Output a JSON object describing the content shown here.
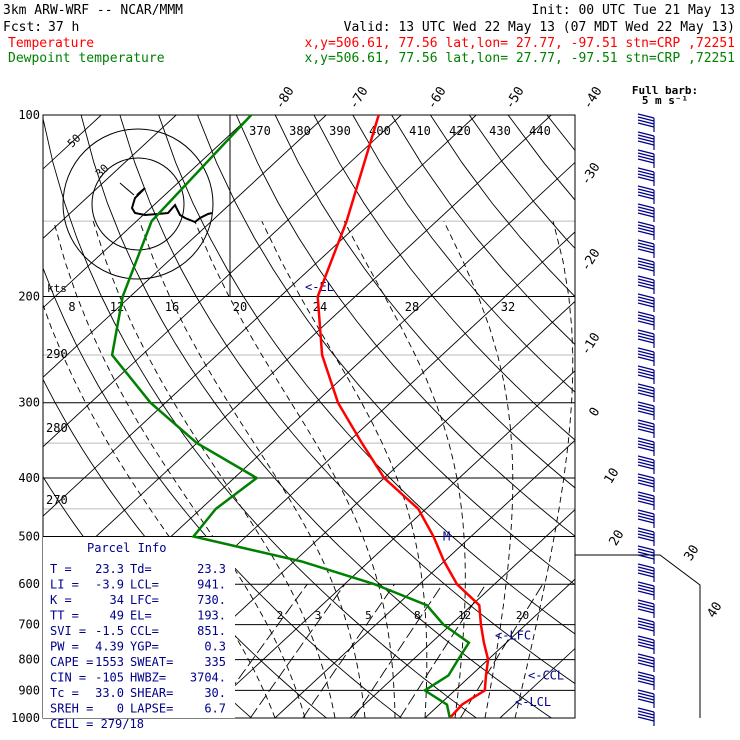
{
  "header": {
    "model": "3km ARW-WRF -- NCAR/MMM",
    "init": "Init: 00 UTC Tue 21 May 13",
    "fcst_label": "Fcst:",
    "fcst_value": "37 h",
    "valid": "Valid: 13 UTC Wed 22 May 13 (07 MDT Wed 22 May 13)",
    "temp_label": "Temperature",
    "dew_label": "Dewpoint temperature",
    "temp_info": "x,y=506.61, 77.56   lat,lon= 27.77, -97.51   stn=CRP ,72251",
    "dew_info": "x,y=506.61, 77.56   lat,lon= 27.77, -97.51   stn=CRP ,72251",
    "temp_color": "#ff0000",
    "dew_color": "#008000"
  },
  "barb_key": {
    "line1": "Full barb:",
    "line2": "5 m s⁻¹"
  },
  "chart_data": {
    "type": "line",
    "diagram": "skew-T log-P",
    "pressure_ticks": [
      100,
      200,
      300,
      400,
      500,
      600,
      700,
      800,
      900,
      1000
    ],
    "isotherm_labels": [
      "-80",
      "-70",
      "-60",
      "-50",
      "-40",
      "-30",
      "-20",
      "-10",
      "0",
      "10",
      "20",
      "30",
      "40"
    ],
    "theta_labels": [
      "370",
      "380",
      "390",
      "400",
      "410",
      "420",
      "430",
      "440"
    ],
    "dry_adiabat_labels": [
      "290",
      "280",
      "270"
    ],
    "mixing_ratio_labels": [
      "2",
      "3",
      "5",
      "8",
      "12",
      "20"
    ],
    "hodograph": {
      "unit_label": "kts",
      "ring_labels": [
        "50",
        "30"
      ],
      "axis_labels": [
        "8",
        "12",
        "16",
        "20",
        "24",
        "28",
        "32"
      ]
    },
    "series": [
      {
        "name": "Temperature",
        "color": "#ff0000",
        "points": [
          [
            100,
            -73
          ],
          [
            150,
            -62
          ],
          [
            200,
            -55
          ],
          [
            250,
            -46
          ],
          [
            300,
            -37
          ],
          [
            350,
            -28
          ],
          [
            400,
            -20
          ],
          [
            450,
            -11
          ],
          [
            500,
            -5
          ],
          [
            550,
            0
          ],
          [
            600,
            5
          ],
          [
            650,
            11
          ],
          [
            700,
            14
          ],
          [
            750,
            17
          ],
          [
            800,
            20
          ],
          [
            850,
            22
          ],
          [
            900,
            24
          ],
          [
            950,
            23
          ],
          [
            1000,
            23.3
          ]
        ]
      },
      {
        "name": "Dewpoint temperature",
        "color": "#008000",
        "points": [
          [
            100,
            -90
          ],
          [
            150,
            -88
          ],
          [
            200,
            -81
          ],
          [
            250,
            -74
          ],
          [
            300,
            -62
          ],
          [
            350,
            -50
          ],
          [
            400,
            -37
          ],
          [
            450,
            -38
          ],
          [
            500,
            -37
          ],
          [
            550,
            -19
          ],
          [
            600,
            -6
          ],
          [
            650,
            4
          ],
          [
            700,
            9
          ],
          [
            750,
            15
          ],
          [
            800,
            16
          ],
          [
            850,
            17
          ],
          [
            900,
            16
          ],
          [
            950,
            21
          ],
          [
            1000,
            23.3
          ]
        ]
      }
    ],
    "levels": [
      {
        "text": "<-EL",
        "p": 193
      },
      {
        "text": "<-LFC",
        "p": 730
      },
      {
        "text": "<-CCL",
        "p": 851
      },
      {
        "text": "<-LCL",
        "p": 941
      },
      {
        "text": "M",
        "p": 500
      }
    ]
  },
  "parcel": {
    "title": "Parcel Info",
    "rows": [
      {
        "k1": "T",
        "v1": "23.3",
        "k2": "Td",
        "v2": "23.3"
      },
      {
        "k1": "LI",
        "v1": "-3.9",
        "k2": "LCL",
        "v2": "941."
      },
      {
        "k1": "K",
        "v1": "34",
        "k2": "LFC",
        "v2": "730."
      },
      {
        "k1": "TT",
        "v1": "49",
        "k2": "EL",
        "v2": "193."
      },
      {
        "k1": "SVI",
        "v1": "-1.5",
        "k2": "CCL",
        "v2": "851."
      },
      {
        "k1": "PW",
        "v1": "4.39",
        "k2": "YGP",
        "v2": "0.3"
      },
      {
        "k1": "CAPE",
        "v1": "1553",
        "k2": "SWEAT",
        "v2": "335"
      },
      {
        "k1": "CIN",
        "v1": "-105",
        "k2": "HWBZ",
        "v2": "3704."
      },
      {
        "k1": "Tc",
        "v1": "33.0",
        "k2": "SHEAR",
        "v2": "30."
      },
      {
        "k1": "SREH",
        "v1": "0",
        "k2": "LAPSE",
        "v2": "6.7"
      }
    ],
    "cell": "CELL = 279/18"
  }
}
